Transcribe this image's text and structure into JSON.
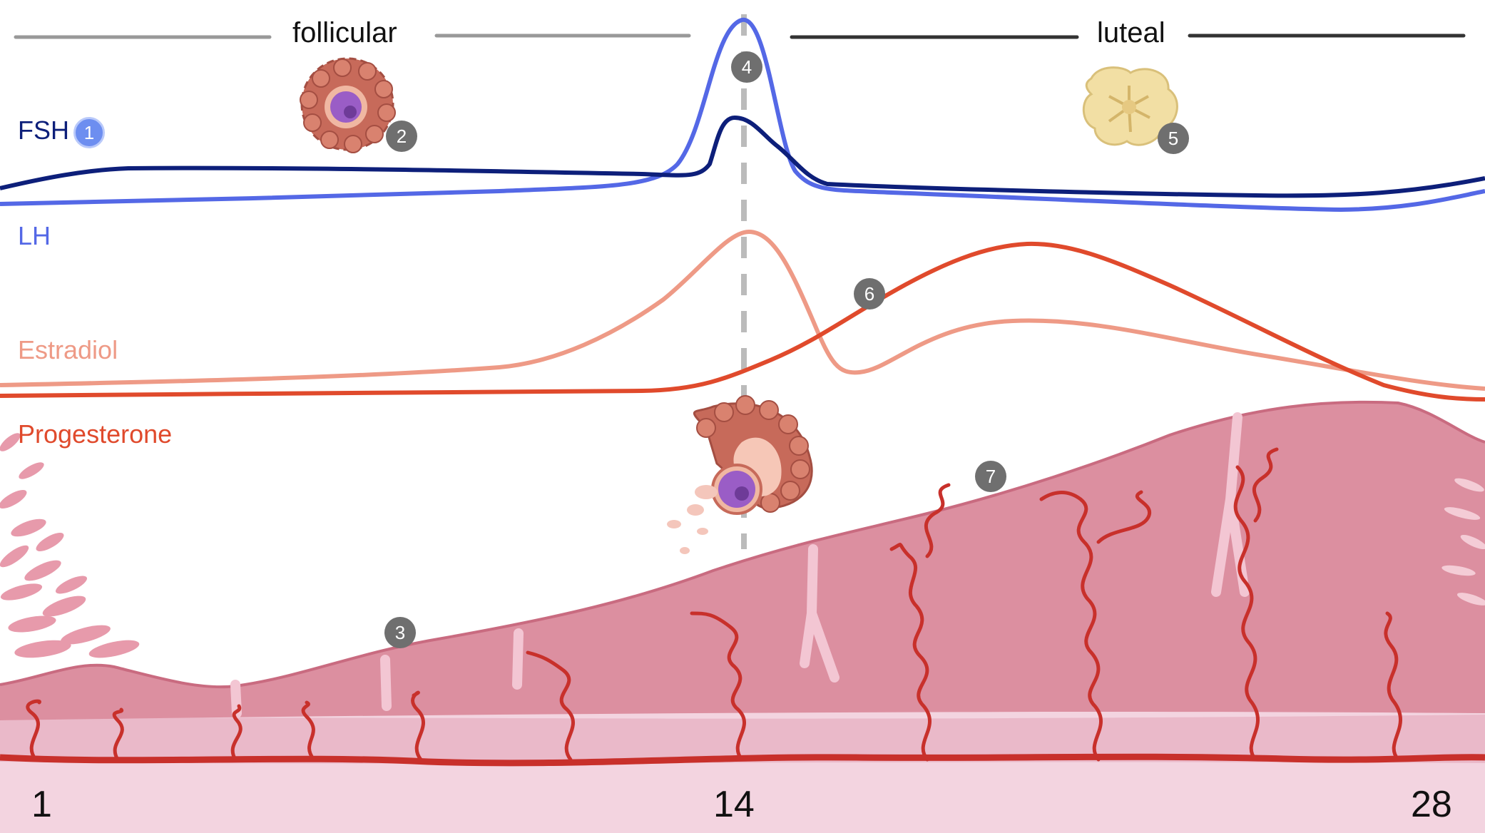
{
  "phases": {
    "follicular": "follicular",
    "luteal": "luteal"
  },
  "hormones": {
    "fsh": {
      "label": "FSH",
      "color": "#0d1f7a"
    },
    "lh": {
      "label": "LH",
      "color": "#5468e6"
    },
    "estradiol": {
      "label": "Estradiol",
      "color": "#ee9a86"
    },
    "progesterone": {
      "label": "Progesterone",
      "color": "#e04a2c"
    }
  },
  "days": {
    "start": "1",
    "ovulation": "14",
    "end": "28"
  },
  "markers": [
    "1",
    "2",
    "3",
    "4",
    "5",
    "6",
    "7"
  ],
  "colors": {
    "endometrium": "#dc8fa0",
    "endometrium_dark": "#c96b80",
    "base_layer": "#f3d4e0",
    "artery": "#c8302b",
    "follicle": "#c76a5a",
    "oocyte": "#9a5dc6",
    "corpus_luteum": "#f2dfa4",
    "ovulation_line": "#bbbbbb"
  }
}
